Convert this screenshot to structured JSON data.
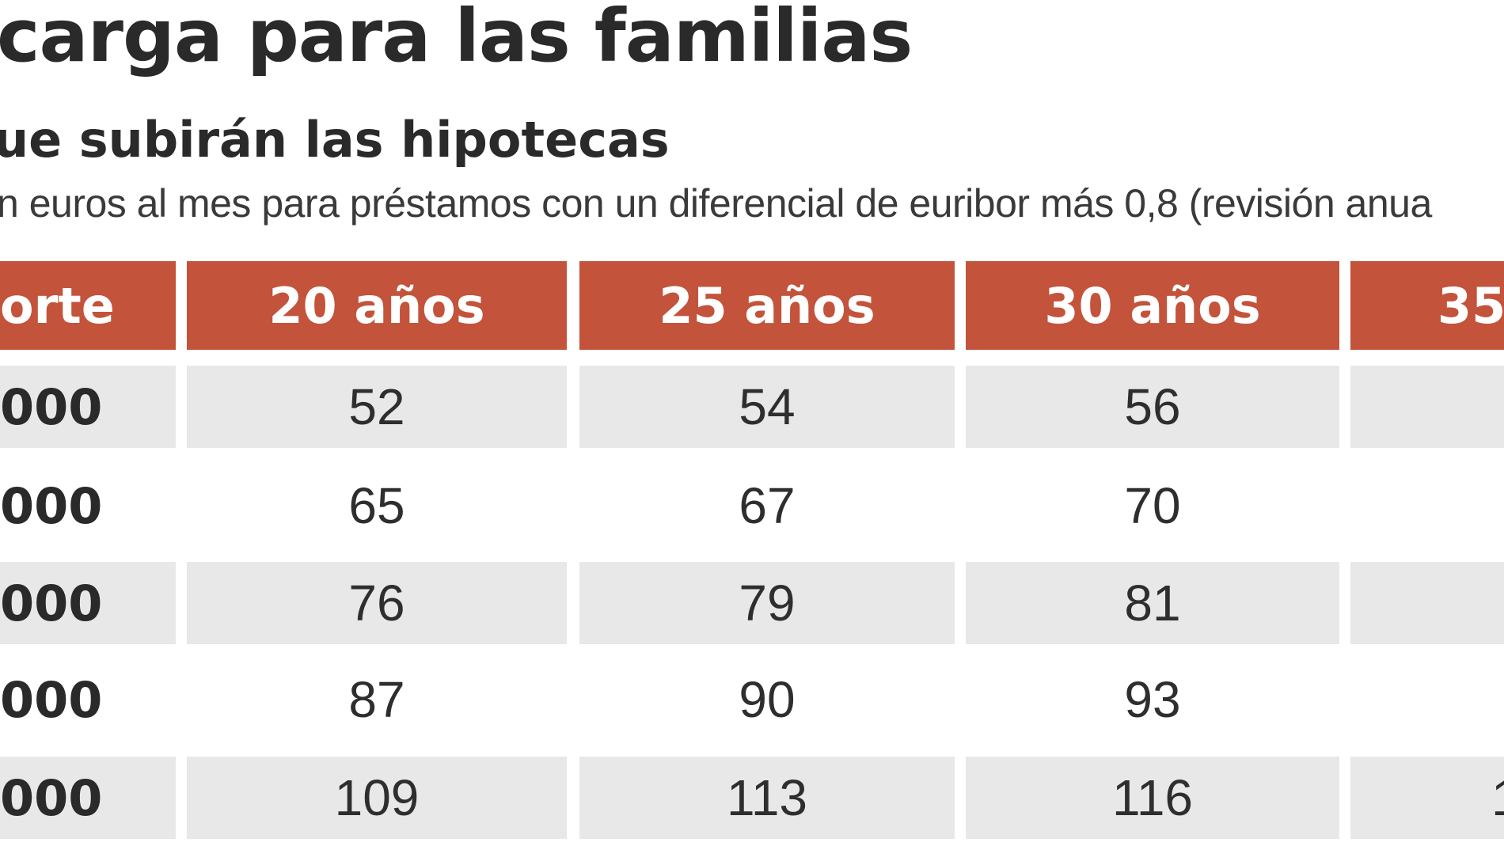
{
  "chart_data": {
    "type": "table",
    "title": "carga para las familias",
    "subtitle": "ue subirán las hipotecas",
    "note": "n euros al mes para préstamos con un diferencial de euribor más 0,8 (revisión anua",
    "columns": [
      "orte",
      "20 años",
      "25 años",
      "30 años",
      "35"
    ],
    "rows": [
      {
        "label": "000",
        "values": [
          "52",
          "54",
          "56",
          ""
        ]
      },
      {
        "label": "000",
        "values": [
          "65",
          "67",
          "70",
          ""
        ]
      },
      {
        "label": "000",
        "values": [
          "76",
          "79",
          "81",
          ""
        ]
      },
      {
        "label": "000",
        "values": [
          "87",
          "90",
          "93",
          ""
        ]
      },
      {
        "label": "000",
        "values": [
          "109",
          "113",
          "116",
          "1"
        ]
      }
    ]
  },
  "colors": {
    "header_bg": "#c3533a",
    "header_text": "#ffffff",
    "row_shade": "#e8e8e8",
    "text": "#2b2b2b"
  }
}
